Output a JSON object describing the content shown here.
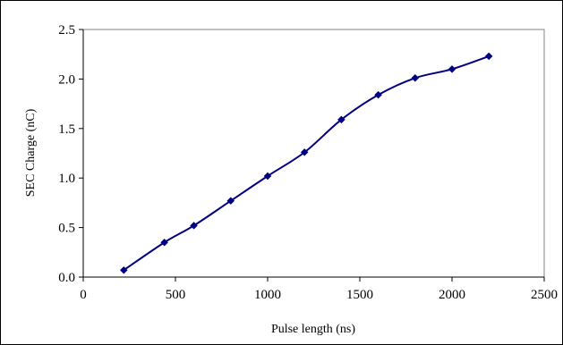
{
  "chart_data": {
    "type": "line",
    "title": "",
    "xlabel": "Pulse length (ns)",
    "ylabel": "SEC Charge (nC)",
    "xlim": [
      0,
      2500
    ],
    "ylim": [
      0.0,
      2.5
    ],
    "x_ticks": [
      "0",
      "500",
      "1000",
      "1500",
      "2000",
      "2500"
    ],
    "y_ticks": [
      "0.0",
      "0.5",
      "1.0",
      "1.5",
      "2.0",
      "2.5"
    ],
    "grid": false,
    "legend": "none",
    "series": [
      {
        "color": "#000080",
        "marker": "diamond",
        "x": [
          220,
          440,
          600,
          800,
          1000,
          1200,
          1400,
          1600,
          1800,
          2000,
          2200
        ],
        "y": [
          0.07,
          0.35,
          0.52,
          0.77,
          1.02,
          1.26,
          1.59,
          1.84,
          2.01,
          2.1,
          2.23
        ]
      }
    ]
  }
}
